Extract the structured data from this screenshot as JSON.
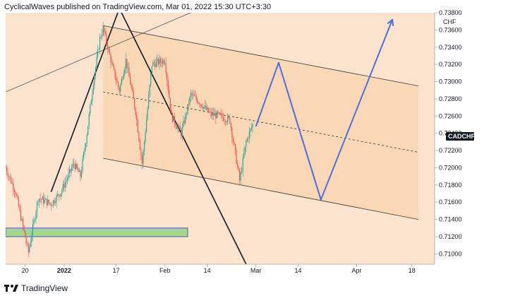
{
  "header": {
    "publisher": "CyclicalWaves published on TradingView.com, Mar 01, 2022 15:30 UTC+3:30"
  },
  "footer": {
    "brand": "TradingView"
  },
  "chart_data": {
    "type": "candlestick",
    "symbol": "CADCHF",
    "unit": "CHF",
    "x_ticks": [
      {
        "label": "20",
        "date": "2021-12-20"
      },
      {
        "label": "2022",
        "date": "2022-01-01"
      },
      {
        "label": "17",
        "date": "2022-01-17"
      },
      {
        "label": "Feb",
        "date": "2022-02-01"
      },
      {
        "label": "14",
        "date": "2022-02-14"
      },
      {
        "label": "Mar",
        "date": "2022-03-01"
      },
      {
        "label": "14",
        "date": "2022-03-14"
      },
      {
        "label": "Apr",
        "date": "2022-04-01"
      },
      {
        "label": "18",
        "date": "2022-04-18"
      }
    ],
    "y_ticks": [
      "0.73800",
      "0.73600",
      "0.73400",
      "0.73200",
      "0.73000",
      "0.72800",
      "0.72600",
      "0.72400",
      "0.72200",
      "0.72000",
      "0.71800",
      "0.71600",
      "0.71400",
      "0.71200",
      "0.71000"
    ],
    "ylim": [
      0.7088,
      0.738
    ],
    "xlim": [
      "2021-12-14",
      "2022-04-25"
    ],
    "price_series": [
      {
        "date": "2021-12-14",
        "value": 0.72
      },
      {
        "date": "2021-12-17",
        "value": 0.7172
      },
      {
        "date": "2021-12-21",
        "value": 0.7102
      },
      {
        "date": "2021-12-24",
        "value": 0.7165
      },
      {
        "date": "2021-12-28",
        "value": 0.7158
      },
      {
        "date": "2021-12-31",
        "value": 0.7172
      },
      {
        "date": "2022-01-04",
        "value": 0.7205
      },
      {
        "date": "2022-01-06",
        "value": 0.719
      },
      {
        "date": "2022-01-08",
        "value": 0.724
      },
      {
        "date": "2022-01-10",
        "value": 0.73
      },
      {
        "date": "2022-01-12",
        "value": 0.735
      },
      {
        "date": "2022-01-13",
        "value": 0.7362
      },
      {
        "date": "2022-01-16",
        "value": 0.7315
      },
      {
        "date": "2022-01-18",
        "value": 0.729
      },
      {
        "date": "2022-01-20",
        "value": 0.7325
      },
      {
        "date": "2022-01-23",
        "value": 0.7265
      },
      {
        "date": "2022-01-25",
        "value": 0.7205
      },
      {
        "date": "2022-01-28",
        "value": 0.732
      },
      {
        "date": "2022-02-01",
        "value": 0.7325
      },
      {
        "date": "2022-02-03",
        "value": 0.726
      },
      {
        "date": "2022-02-06",
        "value": 0.724
      },
      {
        "date": "2022-02-09",
        "value": 0.7285
      },
      {
        "date": "2022-02-12",
        "value": 0.7275
      },
      {
        "date": "2022-02-15",
        "value": 0.7262
      },
      {
        "date": "2022-02-18",
        "value": 0.726
      },
      {
        "date": "2022-02-21",
        "value": 0.7255
      },
      {
        "date": "2022-02-24",
        "value": 0.7185
      },
      {
        "date": "2022-02-26",
        "value": 0.723
      },
      {
        "date": "2022-02-28",
        "value": 0.725
      }
    ],
    "channel": {
      "upper": [
        {
          "date": "2022-01-13",
          "value": 0.7365
        },
        {
          "date": "2022-04-20",
          "value": 0.7295
        }
      ],
      "lower": [
        {
          "date": "2022-01-13",
          "value": 0.7211
        },
        {
          "date": "2022-04-20",
          "value": 0.714
        }
      ],
      "mid": [
        {
          "date": "2022-01-13",
          "value": 0.7288
        },
        {
          "date": "2022-04-20",
          "value": 0.7218
        }
      ]
    },
    "projection": [
      {
        "date": "2022-03-01",
        "value": 0.7248
      },
      {
        "date": "2022-03-08",
        "value": 0.7322
      },
      {
        "date": "2022-03-21",
        "value": 0.7163
      },
      {
        "date": "2022-04-12",
        "value": 0.7372
      }
    ],
    "support_zone": {
      "start": "2021-12-14",
      "end": "2022-02-08",
      "low": 0.712,
      "high": 0.713
    },
    "colors": {
      "up": "#26a69a",
      "down": "#ef5350",
      "projection": "#4f6de2",
      "zone": "#a5d493",
      "channel_fill": "#fad6b0"
    }
  }
}
